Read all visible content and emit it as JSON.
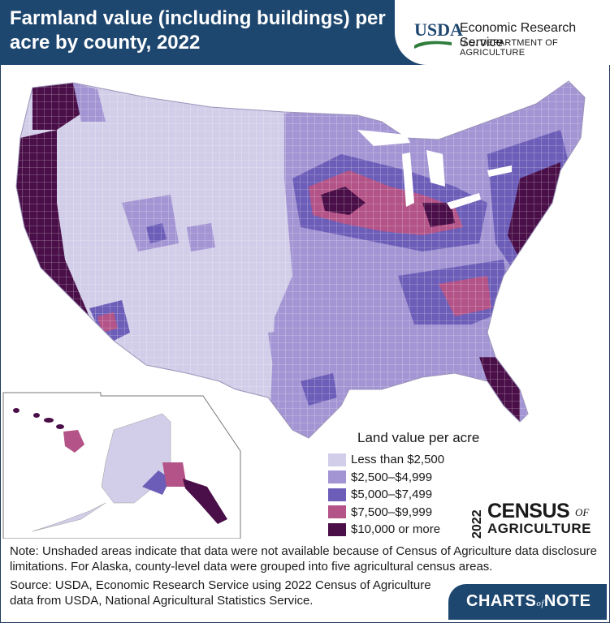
{
  "header": {
    "title": "Farmland value (including buildings) per acre by county, 2022",
    "agency_short": "USDA",
    "agency_name": "Economic Research Service",
    "department": "U.S. DEPARTMENT OF AGRICULTURE"
  },
  "legend": {
    "title": "Land value per acre",
    "items": [
      {
        "label": "Less than $2,500",
        "color": "#d2cde8"
      },
      {
        "label": "$2,500–$4,999",
        "color": "#a395d3"
      },
      {
        "label": "$5,000–$7,499",
        "color": "#6c5db8"
      },
      {
        "label": "$7,500–$9,999",
        "color": "#b35387"
      },
      {
        "label": "$10,000 or more",
        "color": "#4a0f48"
      }
    ]
  },
  "census_logo": {
    "year": "2022",
    "word": "CENSUS",
    "of": "OF",
    "agriculture": "AGRICULTURE"
  },
  "notes": {
    "note": "Note: Unshaded areas indicate that data were not available because of Census of Agriculture data disclosure limitations. For Alaska, county-level data were grouped into five agricultural census areas.",
    "source": "Source: USDA, Economic Research Service using 2022 Census of Agriculture data from USDA, National Agricultural Statistics Service."
  },
  "branding": {
    "charts": "CHARTS",
    "of": "of",
    "note": "NOTE"
  },
  "colors": {
    "header_bg": "#1e4770",
    "state_border": "#ffffff"
  }
}
